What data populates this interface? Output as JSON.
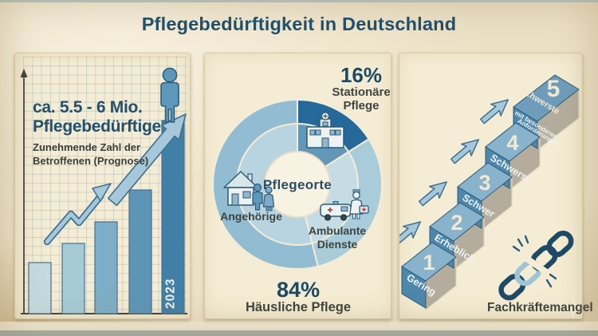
{
  "title": "Pflegebedürftigkeit in Deutschland",
  "panel_left": {
    "headline_line1": "ca. 5.5 - 6 Mio.",
    "headline_line2": "Pflegebedürftige",
    "subline1": "Zunehmende Zahl der",
    "subline2": "Betroffenen (Prognose)",
    "bar_year_label": "2023"
  },
  "panel_middle": {
    "center_label": "Pflegeorte",
    "stat_stationaer_value": "16%",
    "stat_stationaer_label1": "Stationäre",
    "stat_stationaer_label2": "Pflege",
    "stat_haeuslich_value": "84%",
    "stat_haeuslich_label": "Häusliche Pflege",
    "label_angehoerige": "Angehörige",
    "label_ambulante_line1": "Ambulante",
    "label_ambulante_line2": "Dienste"
  },
  "panel_right": {
    "steps": [
      {
        "num": "1",
        "label": "Gering"
      },
      {
        "num": "2",
        "label": "Erheblich"
      },
      {
        "num": "3",
        "label": "Schwer"
      },
      {
        "num": "4",
        "label": "Schwerst"
      },
      {
        "num": "5",
        "label": "Schwerste",
        "sub1": "mit besonderen",
        "sub2": "Anforderungen"
      }
    ],
    "caption": "Fachkräftemangel"
  },
  "icons": [
    "person-icon",
    "trend-arrow-icon",
    "growth-arrow-icon",
    "hospital-icon",
    "house-family-icon",
    "ambulance-icon",
    "nurse-icon",
    "up-arrow-icon",
    "broken-chain-icon",
    "sparkle-icon"
  ],
  "chart_data": [
    {
      "type": "bar",
      "title": "ca. 5.5 - 6 Mio. Pflegebedürftige (Prognose)",
      "categories": [
        "",
        "",
        "",
        "",
        "2023"
      ],
      "values_relative": [
        0.265,
        0.365,
        0.475,
        0.64,
        1.0
      ],
      "xlabel": "",
      "ylabel": "",
      "note": "No numeric axis labels shown; bars depict rising number of care-dependent people, last bar labeled 2023, person pictogram on top",
      "grid": true,
      "legend": false
    },
    {
      "type": "pie",
      "title": "Pflegeorte",
      "segments": [
        {
          "label": "Stationäre Pflege",
          "pct": 16,
          "inner": "#6397ba",
          "ring": "#25699b"
        },
        {
          "label": "Ambulante Dienste (Teil von Häusliche Pflege 84%)",
          "pct": 30.1,
          "inner": "#c5dce5",
          "ring": "#a9ccda"
        },
        {
          "label": "Angehörige (Teil von Häusliche Pflege 84%)",
          "pct": 53.9,
          "inner": "#b7d4e0",
          "ring": "#91bcd1"
        }
      ],
      "labeled_values": {
        "Stationäre Pflege": "16%",
        "Häusliche Pflege": "84%"
      },
      "note": "Donut chart; 84% Häusliche Pflege split visually into Angehörige and Ambulante Dienste (sub-split not numerically labeled)"
    }
  ],
  "colors": {
    "page_bg": "#ece1c6",
    "page_edge_top": "#bcc9c7",
    "page_edge_light": "#f3ecd7",
    "page_edge_dark": "#a9b2aa",
    "panel_bg": "#f4ecd4",
    "panel_border": "#d8cba9",
    "title": "#1d4f6e",
    "headline": "#23506d",
    "subtext": "#3a3f3a",
    "axis": "#3f4540",
    "grid_line": "#7d9ba5",
    "bar1": "#c3dbdf",
    "bar2": "#a5cbd7",
    "bar3": "#7eaec7",
    "bar4": "#5d95b7",
    "bar5": "#4080a7",
    "bar_outline": "#4d6f84",
    "bar_year_text": "#f3f0e4",
    "arrow_fill": "#a6c8da",
    "arrow_stroke": "#3c6f90",
    "person_fill": "#5d98ba",
    "person_stroke": "#2c5e7d",
    "slice_divider": "#f3ecd6",
    "donut_hole": "#f7f2e2",
    "donut_hole_edge": "#e4dcc2",
    "donut_center_text": "#2b4d63",
    "stat_value": "#1b4a66",
    "label_text": "#3f4440",
    "icon_stroke": "#2b5a78",
    "icon_fill": "#eef2f0",
    "icon_accent": "#8fb7cd",
    "icon_cross": "#a84a40",
    "step_top": "#89b3cc",
    "step_top_highest": "#6e9cba",
    "step_front": "#4d87ac",
    "step_face_stroke": "#2a5977",
    "step_side": "#b4ad9e",
    "step_side_edge": "#ded6bd",
    "step_text": "#f2e9d0",
    "riser_text": "#eef3f2",
    "chain_dark": "#1d4a66",
    "chain_light": "#9fc4d6",
    "burst": "#2a5b7d",
    "caption_text": "#3f443f",
    "sparkle": "#f6efdb"
  }
}
